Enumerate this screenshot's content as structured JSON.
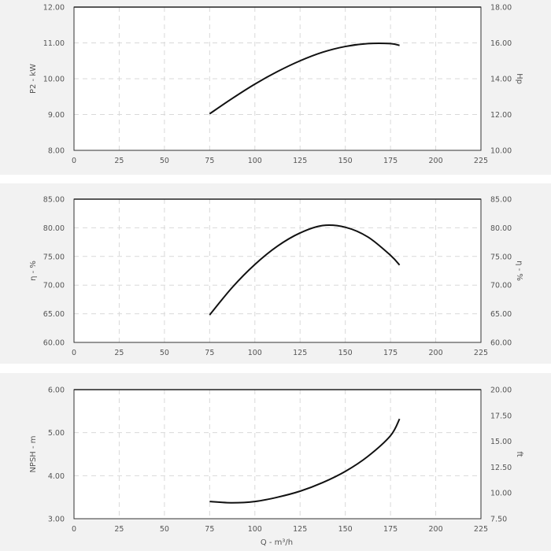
{
  "chart_data": [
    {
      "type": "line",
      "title": "",
      "xlabel": "",
      "ylabel": "P2 - kW",
      "y2label": "Hp",
      "x_ticks": [
        "0",
        "25",
        "50",
        "75",
        "100",
        "125",
        "150",
        "175",
        "200",
        "225"
      ],
      "xlim": [
        0,
        225
      ],
      "ylim": [
        8.0,
        12.0
      ],
      "y_ticks": [
        "8.00",
        "9.00",
        "10.00",
        "11.00",
        "12.00"
      ],
      "y2lim": [
        10.0,
        18.0
      ],
      "y2_ticks": [
        "10.00",
        "12.00",
        "14.00",
        "16.00",
        "18.00"
      ],
      "grid": true,
      "series": [
        {
          "x": [
            75,
            87.5,
            100,
            112.5,
            125,
            137.5,
            150,
            162.5,
            175,
            180
          ],
          "values": [
            9.02,
            9.45,
            9.85,
            10.2,
            10.5,
            10.74,
            10.9,
            10.98,
            10.98,
            10.93
          ]
        }
      ]
    },
    {
      "type": "line",
      "title": "",
      "xlabel": "",
      "ylabel": "η - %",
      "y2label": "η - %",
      "x_ticks": [
        "0",
        "25",
        "50",
        "75",
        "100",
        "125",
        "150",
        "175",
        "200",
        "225"
      ],
      "xlim": [
        0,
        225
      ],
      "ylim": [
        60.0,
        85.0
      ],
      "y_ticks": [
        "60.00",
        "65.00",
        "70.00",
        "75.00",
        "80.00",
        "85.00"
      ],
      "y2lim": [
        60.0,
        85.0
      ],
      "y2_ticks": [
        "60.00",
        "65.00",
        "70.00",
        "75.00",
        "80.00",
        "85.00"
      ],
      "grid": true,
      "series": [
        {
          "x": [
            75,
            87.5,
            100,
            112.5,
            125,
            137.5,
            150,
            162.5,
            175,
            180
          ],
          "values": [
            64.8,
            69.6,
            73.6,
            76.8,
            79.1,
            80.4,
            80.1,
            78.4,
            75.2,
            73.5
          ]
        }
      ]
    },
    {
      "type": "line",
      "title": "",
      "xlabel": "Q - m³/h",
      "ylabel": "NPSH - m",
      "y2label": "ft",
      "x_ticks": [
        "0",
        "25",
        "50",
        "75",
        "100",
        "125",
        "150",
        "175",
        "200",
        "225"
      ],
      "xlim": [
        0,
        225
      ],
      "ylim": [
        3.0,
        6.0
      ],
      "y_ticks": [
        "3.00",
        "4.00",
        "5.00",
        "6.00"
      ],
      "y2lim": [
        7.5,
        20.0
      ],
      "y2_ticks": [
        "7.50",
        "10.00",
        "12.50",
        "15.00",
        "17.50",
        "20.00"
      ],
      "grid": true,
      "series": [
        {
          "x": [
            75,
            87.5,
            100,
            112.5,
            125,
            137.5,
            150,
            162.5,
            175,
            180
          ],
          "values": [
            3.4,
            3.37,
            3.4,
            3.5,
            3.64,
            3.84,
            4.1,
            4.45,
            4.93,
            5.32
          ]
        }
      ]
    }
  ]
}
